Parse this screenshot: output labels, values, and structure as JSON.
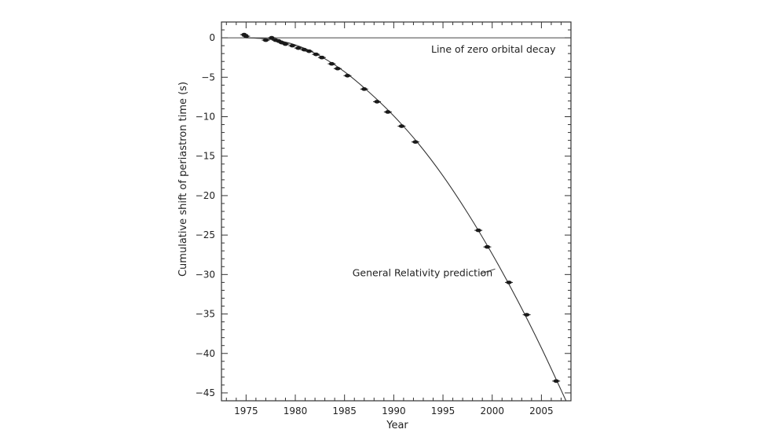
{
  "chart_data": {
    "type": "scatter",
    "title": "",
    "xlabel": "Year",
    "ylabel": "Cumulative shift of periastron time (s)",
    "xlim": [
      1972.5,
      2008
    ],
    "ylim": [
      -46,
      2
    ],
    "x_ticks": [
      1975,
      1980,
      1985,
      1990,
      1995,
      2000,
      2005
    ],
    "y_ticks": [
      0,
      -5,
      -10,
      -15,
      -20,
      -25,
      -30,
      -35,
      -40,
      -45
    ],
    "grid": false,
    "legend": "none",
    "series": [
      {
        "kind": "points",
        "x": [
          1974.8,
          1975.0,
          1977.0,
          1977.6,
          1978.0,
          1978.3,
          1978.6,
          1979.0,
          1979.7,
          1980.3,
          1980.9,
          1981.4,
          1982.1,
          1982.7,
          1983.7,
          1984.3,
          1985.3,
          1987.0,
          1988.3,
          1989.4,
          1990.8,
          1992.2,
          1998.6,
          1999.5,
          2001.7,
          2003.5,
          2006.5
        ],
        "y": [
          0.4,
          0.2,
          -0.3,
          0.0,
          -0.3,
          -0.4,
          -0.6,
          -0.8,
          -1.0,
          -1.3,
          -1.5,
          -1.7,
          -2.1,
          -2.5,
          -3.3,
          -3.9,
          -4.8,
          -6.5,
          -8.1,
          -9.4,
          -11.2,
          -13.2,
          -24.4,
          -26.5,
          -31.0,
          -35.1,
          -43.5
        ]
      },
      {
        "kind": "curve",
        "x": [
          1975.0,
          1977.5,
          1980.0,
          1982.5,
          1985.0,
          1987.5,
          1990.0,
          1992.5,
          1995.0,
          1997.5,
          2000.0,
          2002.5,
          2005.0,
          2007.5
        ],
        "y": [
          0.0,
          -0.2,
          -0.9,
          -2.3,
          -4.3,
          -6.9,
          -9.9,
          -13.4,
          -17.5,
          -22.2,
          -27.4,
          -33.1,
          -39.3,
          -46.0
        ]
      },
      {
        "kind": "reference_line",
        "y": 0
      }
    ],
    "annotations": [
      {
        "text": "Line of zero orbital decay",
        "x": 1993.8,
        "y": -1.5
      },
      {
        "text": "General Relativity prediction",
        "x": 1985.8,
        "y": -29.8
      }
    ]
  }
}
